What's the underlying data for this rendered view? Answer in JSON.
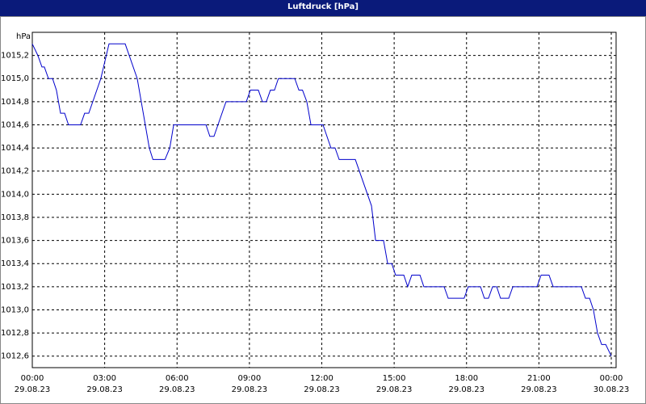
{
  "chart_data": {
    "type": "line",
    "title": "Luftdruck [hPa]",
    "y_label": "hPa",
    "color": "#0000cc",
    "grid": true,
    "x": [
      0,
      0.23,
      0.4,
      0.5,
      0.67,
      0.84,
      1.0,
      1.17,
      1.34,
      1.5,
      2.0,
      2.17,
      2.34,
      2.84,
      3.18,
      3.85,
      4.35,
      4.85,
      5.0,
      5.5,
      5.7,
      5.86,
      7.2,
      7.36,
      7.53,
      8.03,
      8.87,
      9.04,
      9.37,
      9.54,
      9.7,
      9.87,
      10.04,
      10.2,
      10.88,
      11.05,
      11.2,
      11.38,
      11.55,
      12.05,
      12.38,
      12.55,
      12.72,
      13.39,
      14.06,
      14.23,
      14.56,
      14.73,
      14.9,
      15.06,
      15.4,
      15.56,
      15.73,
      16.07,
      16.23,
      17.07,
      17.24,
      17.9,
      18.07,
      18.58,
      18.74,
      18.91,
      19.08,
      19.25,
      19.41,
      19.75,
      19.92,
      20.92,
      21.09,
      21.42,
      21.59,
      22.76,
      22.93,
      23.1,
      23.26,
      23.43,
      23.6,
      23.77,
      24.0
    ],
    "values": [
      1015.3,
      1015.2,
      1015.1,
      1015.1,
      1015.0,
      1015.0,
      1014.9,
      1014.7,
      1014.7,
      1014.6,
      1014.6,
      1014.7,
      1014.7,
      1015.0,
      1015.3,
      1015.3,
      1015.0,
      1014.4,
      1014.3,
      1014.3,
      1014.4,
      1014.6,
      1014.6,
      1014.5,
      1014.5,
      1014.8,
      1014.8,
      1014.9,
      1014.9,
      1014.8,
      1014.8,
      1014.9,
      1014.9,
      1015.0,
      1015.0,
      1014.9,
      1014.9,
      1014.8,
      1014.6,
      1014.6,
      1014.4,
      1014.4,
      1014.3,
      1014.3,
      1013.9,
      1013.6,
      1013.6,
      1013.4,
      1013.4,
      1013.3,
      1013.3,
      1013.2,
      1013.3,
      1013.3,
      1013.2,
      1013.2,
      1013.1,
      1013.1,
      1013.2,
      1013.2,
      1013.1,
      1013.1,
      1013.2,
      1013.2,
      1013.1,
      1013.1,
      1013.2,
      1013.2,
      1013.3,
      1013.3,
      1013.2,
      1013.2,
      1013.1,
      1013.1,
      1013.0,
      1012.8,
      1012.7,
      1012.7,
      1012.6
    ],
    "xlim": [
      0,
      24.2
    ],
    "xticks": [
      {
        "value": 0,
        "label": "00:00\n29.08.23"
      },
      {
        "value": 3,
        "label": "03:00\n29.08.23"
      },
      {
        "value": 6,
        "label": "06:00\n29.08.23"
      },
      {
        "value": 9,
        "label": "09:00\n29.08.23"
      },
      {
        "value": 12,
        "label": "12:00\n29.08.23"
      },
      {
        "value": 15,
        "label": "15:00\n29.08.23"
      },
      {
        "value": 18,
        "label": "18:00\n29.08.23"
      },
      {
        "value": 21,
        "label": "21:00\n29.08.23"
      },
      {
        "value": 24,
        "label": "00:00\n30.08.23"
      }
    ],
    "ylim": [
      1012.5,
      1015.4
    ],
    "yticks": [
      {
        "value": 1012.6,
        "label": "1012,6"
      },
      {
        "value": 1012.8,
        "label": "1012,8"
      },
      {
        "value": 1013.0,
        "label": "1013,0"
      },
      {
        "value": 1013.2,
        "label": "1013,2"
      },
      {
        "value": 1013.4,
        "label": "1013,4"
      },
      {
        "value": 1013.6,
        "label": "1013,6"
      },
      {
        "value": 1013.8,
        "label": "1013,8"
      },
      {
        "value": 1014.0,
        "label": "1014,0"
      },
      {
        "value": 1014.2,
        "label": "1014,2"
      },
      {
        "value": 1014.4,
        "label": "1014,4"
      },
      {
        "value": 1014.6,
        "label": "1014,6"
      },
      {
        "value": 1014.8,
        "label": "1014,8"
      },
      {
        "value": 1015.0,
        "label": "1015,0"
      },
      {
        "value": 1015.2,
        "label": "1015,2"
      }
    ]
  }
}
